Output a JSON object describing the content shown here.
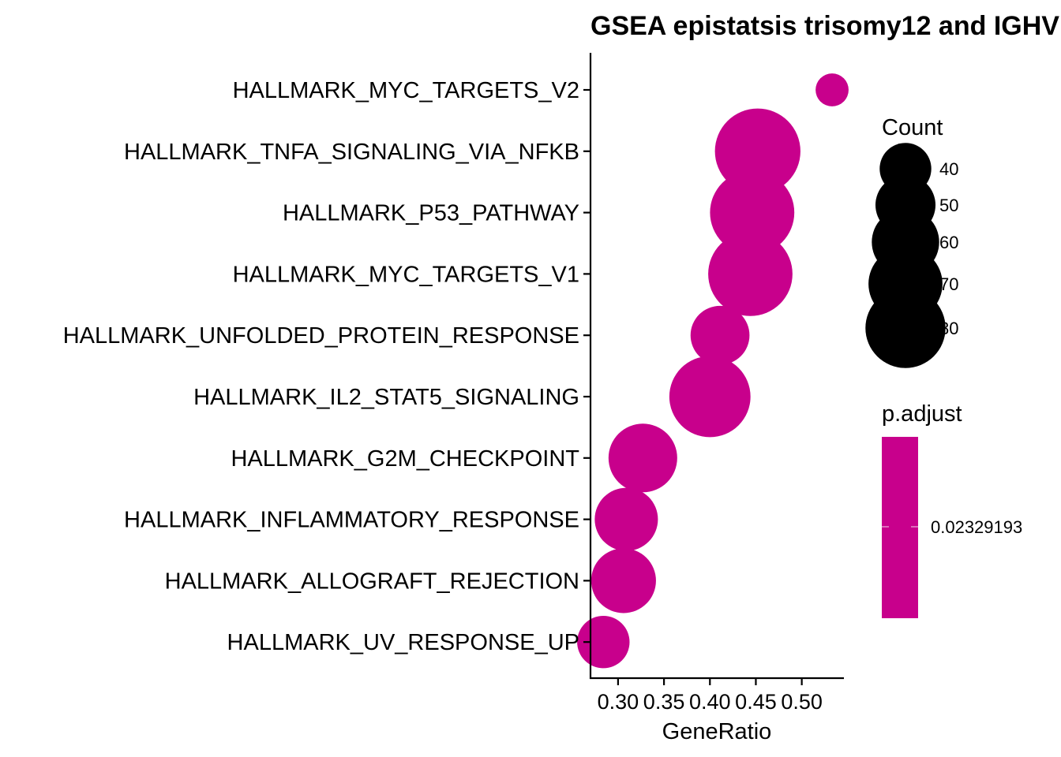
{
  "chart_data": {
    "type": "scatter",
    "title": "GSEA epistatsis trisomy12 and IGHV",
    "xlabel": "GeneRatio",
    "ylabel": "",
    "xlim": [
      0.27,
      0.545
    ],
    "xticks": [
      0.3,
      0.35,
      0.4,
      0.45,
      0.5
    ],
    "xtick_labels": [
      "0.30",
      "0.35",
      "0.40",
      "0.45",
      "0.50"
    ],
    "categories": [
      "HALLMARK_MYC_TARGETS_V2",
      "HALLMARK_TNFA_SIGNALING_VIA_NFKB",
      "HALLMARK_P53_PATHWAY",
      "HALLMARK_MYC_TARGETS_V1",
      "HALLMARK_UNFOLDED_PROTEIN_RESPONSE",
      "HALLMARK_IL2_STAT5_SIGNALING",
      "HALLMARK_G2M_CHECKPOINT",
      "HALLMARK_INFLAMMATORY_RESPONSE",
      "HALLMARK_ALLOGRAFT_REJECTION",
      "HALLMARK_UV_RESPONSE_UP"
    ],
    "gene_ratio": [
      0.533,
      0.452,
      0.446,
      0.444,
      0.411,
      0.4,
      0.327,
      0.309,
      0.306,
      0.284
    ],
    "count": [
      22,
      82,
      80,
      80,
      45,
      75,
      57,
      50,
      52,
      38
    ],
    "p_adjust": [
      0.02329193,
      0.02329193,
      0.02329193,
      0.02329193,
      0.02329193,
      0.02329193,
      0.02329193,
      0.02329193,
      0.02329193,
      0.02329193
    ],
    "point_color": "#C8008C",
    "size_legend": {
      "title": "Count",
      "values": [
        40,
        50,
        60,
        70,
        80
      ],
      "labels": [
        "40",
        "50",
        "60",
        "70",
        "80"
      ]
    },
    "color_legend": {
      "title": "p.adjust",
      "label": "0.02329193",
      "color": "#C8008C"
    },
    "grid": false,
    "legend_position": "right"
  }
}
